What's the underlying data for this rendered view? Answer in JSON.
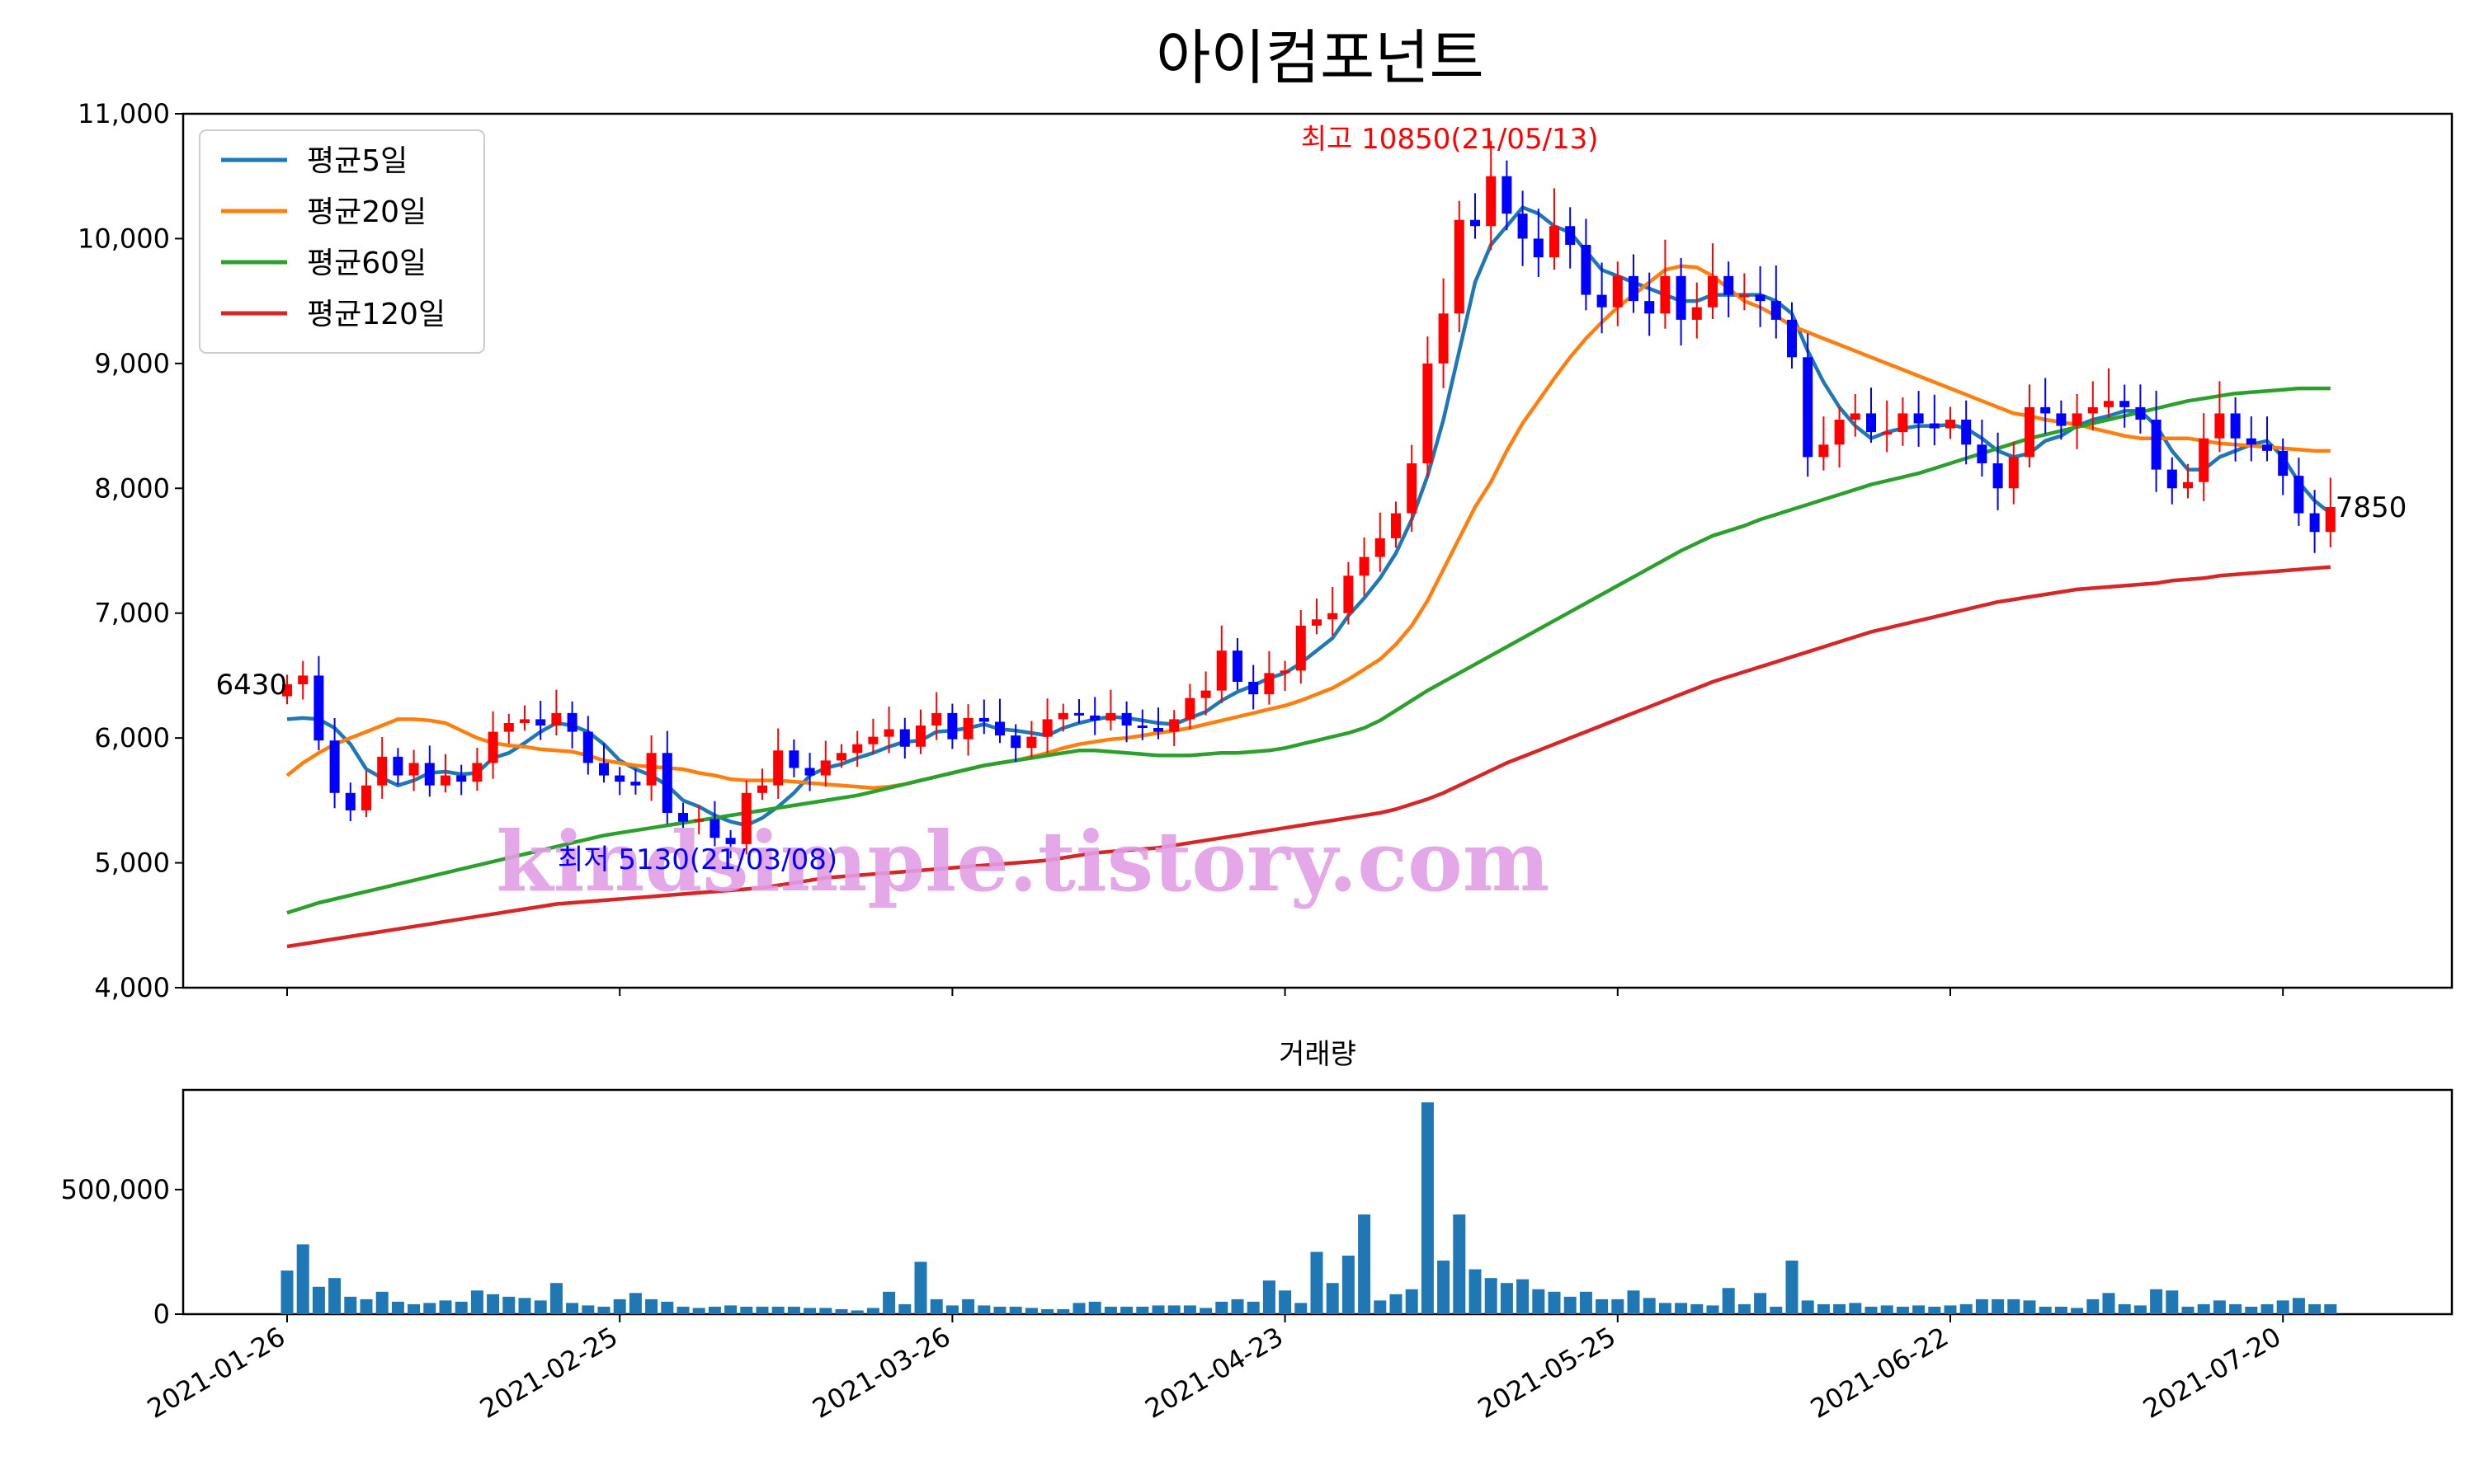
{
  "chart_data": [
    {
      "type": "candlestick",
      "title": "아이컴포넌트",
      "ylim": [
        4000,
        11000
      ],
      "yticks": [
        4000,
        5000,
        6000,
        7000,
        8000,
        9000,
        10000,
        11000
      ],
      "ytick_labels": [
        "4,000",
        "5,000",
        "6,000",
        "7,000",
        "8,000",
        "9,000",
        "10,000",
        "11,000"
      ],
      "xtick_labels": [
        "2021-01-26",
        "2021-02-25",
        "2021-03-26",
        "2021-04-23",
        "2021-05-25",
        "2021-06-22",
        "2021-07-20"
      ],
      "xtick_index": [
        0,
        21,
        42,
        63,
        84,
        105,
        126
      ],
      "n_days": 130,
      "up_color": "#ff0000",
      "down_color": "#0000ff",
      "close": [
        6430,
        6500,
        5980,
        5560,
        5420,
        5620,
        5850,
        5700,
        5800,
        5620,
        5700,
        5650,
        5800,
        6050,
        6120,
        6150,
        6100,
        6200,
        6050,
        5800,
        5700,
        5650,
        5620,
        5880,
        5400,
        5330,
        5350,
        5200,
        5150,
        5560,
        5620,
        5900,
        5760,
        5700,
        5820,
        5880,
        5950,
        6010,
        6070,
        5930,
        6100,
        6200,
        5990,
        6160,
        6130,
        6020,
        5920,
        6010,
        6150,
        6200,
        6180,
        6140,
        6200,
        6100,
        6080,
        6050,
        6150,
        6320,
        6380,
        6700,
        6450,
        6350,
        6520,
        6540,
        6900,
        6950,
        7000,
        7300,
        7450,
        7600,
        7800,
        8200,
        9000,
        9400,
        10150,
        10100,
        10500,
        10200,
        10000,
        9850,
        10100,
        9950,
        9550,
        9450,
        9700,
        9500,
        9400,
        9700,
        9350,
        9450,
        9700,
        9550,
        9550,
        9500,
        9350,
        9050,
        8250,
        8350,
        8550,
        8600,
        8450,
        8450,
        8600,
        8520,
        8480,
        8550,
        8350,
        8200,
        8000,
        8250,
        8650,
        8600,
        8500,
        8600,
        8650,
        8700,
        8650,
        8550,
        8150,
        8000,
        8050,
        8400,
        8600,
        8400,
        8350,
        8300,
        8100,
        7800,
        7650,
        7850
      ],
      "annotations": {
        "high_label": "최고 10850(21/05/13)",
        "low_label": "최저 5130(21/03/08)",
        "last_value": "7850",
        "first_value": "6430"
      },
      "series": [
        {
          "name": "평균5일",
          "color": "#1f77b4",
          "values": [
            6150,
            6160,
            6150,
            6080,
            5950,
            5750,
            5680,
            5620,
            5660,
            5720,
            5730,
            5710,
            5720,
            5840,
            5880,
            5960,
            6050,
            6120,
            6100,
            6050,
            5950,
            5820,
            5750,
            5700,
            5620,
            5500,
            5450,
            5380,
            5330,
            5300,
            5360,
            5450,
            5560,
            5700,
            5760,
            5790,
            5840,
            5880,
            5930,
            5970,
            5980,
            6050,
            6060,
            6080,
            6110,
            6070,
            6060,
            6040,
            6020,
            6080,
            6120,
            6150,
            6170,
            6160,
            6140,
            6120,
            6110,
            6160,
            6210,
            6300,
            6370,
            6420,
            6480,
            6520,
            6600,
            6700,
            6800,
            6980,
            7120,
            7280,
            7480,
            7750,
            8100,
            8550,
            9100,
            9650,
            9950,
            10100,
            10250,
            10200,
            10100,
            10050,
            9900,
            9750,
            9700,
            9650,
            9600,
            9550,
            9500,
            9500,
            9550,
            9550,
            9550,
            9550,
            9500,
            9400,
            9100,
            8850,
            8650,
            8500,
            8400,
            8450,
            8480,
            8500,
            8500,
            8510,
            8480,
            8400,
            8300,
            8250,
            8280,
            8380,
            8420,
            8500,
            8550,
            8580,
            8620,
            8620,
            8500,
            8300,
            8150,
            8150,
            8250,
            8300,
            8350,
            8380,
            8250,
            8050,
            7900,
            7800
          ]
        },
        {
          "name": "평균20일",
          "color": "#ff7f0e",
          "values": [
            5700,
            5800,
            5880,
            5950,
            6000,
            6050,
            6100,
            6150,
            6150,
            6140,
            6120,
            6060,
            6000,
            5960,
            5940,
            5930,
            5910,
            5900,
            5890,
            5860,
            5820,
            5800,
            5780,
            5770,
            5760,
            5750,
            5720,
            5700,
            5670,
            5660,
            5660,
            5660,
            5650,
            5640,
            5630,
            5620,
            5610,
            5600,
            5610,
            5630,
            5660,
            5690,
            5720,
            5750,
            5780,
            5800,
            5820,
            5850,
            5880,
            5920,
            5950,
            5970,
            5990,
            6000,
            6020,
            6040,
            6060,
            6080,
            6110,
            6140,
            6170,
            6200,
            6230,
            6260,
            6300,
            6350,
            6400,
            6470,
            6550,
            6630,
            6750,
            6900,
            7100,
            7350,
            7600,
            7850,
            8050,
            8300,
            8520,
            8700,
            8880,
            9050,
            9200,
            9330,
            9450,
            9550,
            9650,
            9750,
            9780,
            9770,
            9700,
            9600,
            9500,
            9450,
            9380,
            9300,
            9250,
            9200,
            9150,
            9100,
            9050,
            9000,
            8950,
            8900,
            8850,
            8800,
            8750,
            8700,
            8650,
            8600,
            8580,
            8550,
            8530,
            8510,
            8480,
            8450,
            8420,
            8400,
            8400,
            8400,
            8400,
            8380,
            8360,
            8350,
            8340,
            8330,
            8320,
            8310,
            8300,
            8300
          ]
        },
        {
          "name": "평균60일",
          "color": "#2ca02c",
          "values": [
            4600,
            4640,
            4680,
            4710,
            4740,
            4770,
            4800,
            4830,
            4860,
            4890,
            4920,
            4950,
            4980,
            5010,
            5040,
            5070,
            5100,
            5130,
            5160,
            5190,
            5220,
            5240,
            5260,
            5280,
            5300,
            5320,
            5340,
            5360,
            5380,
            5400,
            5420,
            5440,
            5460,
            5480,
            5500,
            5520,
            5540,
            5570,
            5600,
            5630,
            5660,
            5690,
            5720,
            5750,
            5780,
            5800,
            5820,
            5840,
            5860,
            5880,
            5900,
            5900,
            5890,
            5880,
            5870,
            5860,
            5860,
            5860,
            5870,
            5880,
            5880,
            5890,
            5900,
            5920,
            5950,
            5980,
            6010,
            6040,
            6080,
            6140,
            6220,
            6300,
            6380,
            6450,
            6520,
            6590,
            6660,
            6730,
            6800,
            6870,
            6940,
            7010,
            7080,
            7150,
            7220,
            7290,
            7360,
            7430,
            7500,
            7560,
            7620,
            7660,
            7700,
            7750,
            7790,
            7830,
            7870,
            7910,
            7950,
            7990,
            8030,
            8060,
            8090,
            8120,
            8160,
            8200,
            8240,
            8280,
            8320,
            8360,
            8400,
            8430,
            8460,
            8490,
            8520,
            8550,
            8580,
            8610,
            8640,
            8670,
            8700,
            8720,
            8740,
            8760,
            8770,
            8780,
            8790,
            8800,
            8800,
            8800
          ]
        },
        {
          "name": "평균120일",
          "color": "#d62728",
          "values": [
            4330,
            4350,
            4370,
            4390,
            4410,
            4430,
            4450,
            4470,
            4490,
            4510,
            4530,
            4550,
            4570,
            4590,
            4610,
            4630,
            4650,
            4670,
            4680,
            4690,
            4700,
            4710,
            4720,
            4730,
            4740,
            4750,
            4760,
            4770,
            4780,
            4790,
            4800,
            4820,
            4840,
            4860,
            4880,
            4890,
            4900,
            4910,
            4920,
            4930,
            4940,
            4950,
            4960,
            4970,
            4980,
            4990,
            5000,
            5010,
            5020,
            5040,
            5060,
            5080,
            5090,
            5100,
            5110,
            5120,
            5140,
            5160,
            5180,
            5200,
            5220,
            5240,
            5260,
            5280,
            5300,
            5320,
            5340,
            5360,
            5380,
            5400,
            5430,
            5470,
            5510,
            5560,
            5620,
            5680,
            5740,
            5800,
            5850,
            5900,
            5950,
            6000,
            6050,
            6100,
            6150,
            6200,
            6250,
            6300,
            6350,
            6400,
            6450,
            6490,
            6530,
            6570,
            6610,
            6650,
            6690,
            6730,
            6770,
            6810,
            6850,
            6880,
            6910,
            6940,
            6970,
            7000,
            7030,
            7060,
            7090,
            7110,
            7130,
            7150,
            7170,
            7190,
            7200,
            7210,
            7220,
            7230,
            7240,
            7260,
            7270,
            7280,
            7300,
            7310,
            7320,
            7330,
            7340,
            7350,
            7360,
            7370
          ]
        }
      ]
    },
    {
      "type": "bar",
      "title": "거래량",
      "ylim": [
        0,
        900000
      ],
      "yticks": [
        0,
        500000
      ],
      "ytick_labels": [
        "0",
        "500,000"
      ],
      "color": "#1f77b4",
      "values": [
        175000,
        280000,
        110000,
        145000,
        70000,
        60000,
        90000,
        50000,
        40000,
        45000,
        55000,
        50000,
        95000,
        80000,
        70000,
        65000,
        55000,
        125000,
        45000,
        35000,
        30000,
        60000,
        85000,
        60000,
        50000,
        30000,
        25000,
        30000,
        35000,
        30000,
        30000,
        30000,
        30000,
        25000,
        25000,
        20000,
        15000,
        25000,
        90000,
        40000,
        210000,
        60000,
        35000,
        60000,
        35000,
        30000,
        30000,
        25000,
        20000,
        20000,
        45000,
        50000,
        30000,
        30000,
        30000,
        35000,
        35000,
        35000,
        25000,
        50000,
        60000,
        50000,
        135000,
        95000,
        45000,
        250000,
        125000,
        235000,
        400000,
        55000,
        80000,
        100000,
        850000,
        215000,
        400000,
        180000,
        145000,
        125000,
        140000,
        100000,
        90000,
        70000,
        90000,
        60000,
        60000,
        95000,
        65000,
        45000,
        45000,
        40000,
        35000,
        105000,
        40000,
        85000,
        30000,
        215000,
        55000,
        40000,
        40000,
        45000,
        30000,
        35000,
        30000,
        35000,
        30000,
        35000,
        40000,
        60000,
        60000,
        60000,
        55000,
        30000,
        30000,
        25000,
        60000,
        85000,
        40000,
        35000,
        100000,
        95000,
        30000,
        40000,
        55000,
        40000,
        30000,
        40000,
        55000,
        65000,
        40000,
        40000
      ]
    }
  ],
  "watermark": "kindsimple.tistory.com"
}
